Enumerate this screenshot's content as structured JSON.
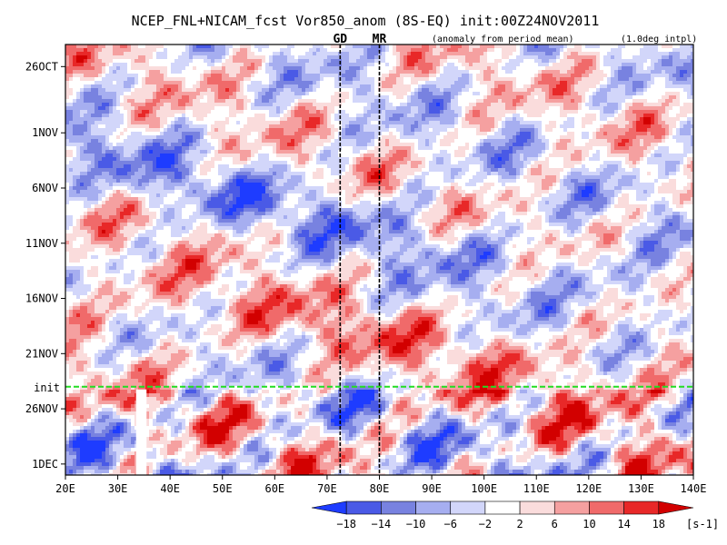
{
  "chart_data": {
    "type": "heatmap",
    "title": "NCEP_FNL+NICAM_fcst Vor850_anom (8S-EQ) init:00Z24NOV2011",
    "annotation_left": "(anomaly from period mean)",
    "annotation_right": "(1.0deg intpl)",
    "x": {
      "ticks": [
        "20E",
        "30E",
        "40E",
        "50E",
        "60E",
        "70E",
        "80E",
        "90E",
        "100E",
        "110E",
        "120E",
        "130E",
        "140E"
      ],
      "range_deg_east": [
        20,
        140
      ]
    },
    "y": {
      "ticks": [
        "26OCT",
        "1NOV",
        "6NOV",
        "11NOV",
        "16NOV",
        "21NOV",
        "26NOV",
        "1DEC"
      ],
      "range": [
        "2011-10-24",
        "2011-12-02"
      ]
    },
    "markers": [
      {
        "label": "GD",
        "lon": 72.5
      },
      {
        "label": "MR",
        "lon": 80
      }
    ],
    "init_line": {
      "label": "init",
      "date": "2011-11-24"
    },
    "missing_band_lon": [
      33.5,
      35.5
    ],
    "colorbar": {
      "levels": [
        "−18",
        "−14",
        "−10",
        "−6",
        "−2",
        "2",
        "6",
        "10",
        "14",
        "18"
      ],
      "unit": "[s-1]",
      "colors": [
        "#1e3cff",
        "#4a5ae6",
        "#7882e0",
        "#a6aef0",
        "#d2d6fa",
        "#ffffff",
        "#fadcdc",
        "#f5a0a0",
        "#f06a6a",
        "#e82828",
        "#d20000"
      ]
    }
  }
}
